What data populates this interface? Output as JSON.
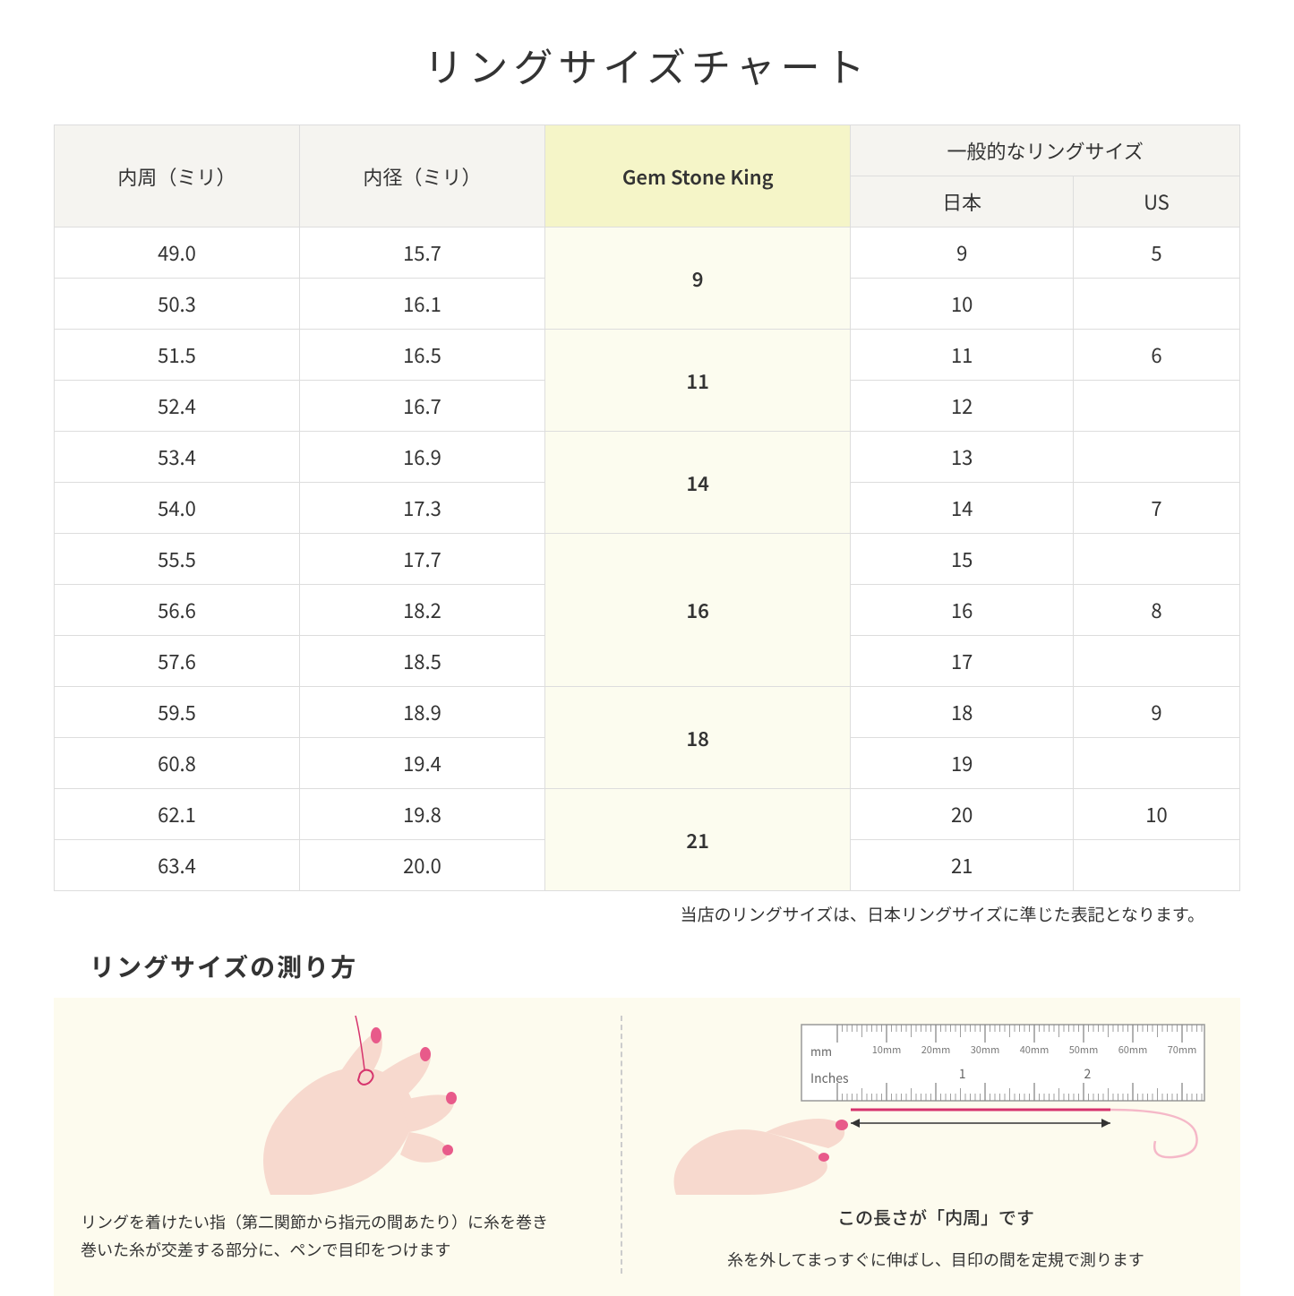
{
  "title": "リングサイズチャート",
  "headers": {
    "circumference": "内周（ミリ）",
    "diameter": "内径（ミリ）",
    "gsk": "Gem Stone King",
    "general": "一般的なリングサイズ",
    "jp": "日本",
    "us": "US"
  },
  "groups": [
    {
      "gsk": "9",
      "rows": [
        {
          "c": "49.0",
          "d": "15.7",
          "jp": "9",
          "us": "5"
        },
        {
          "c": "50.3",
          "d": "16.1",
          "jp": "10",
          "us": ""
        }
      ]
    },
    {
      "gsk": "11",
      "rows": [
        {
          "c": "51.5",
          "d": "16.5",
          "jp": "11",
          "us": "6"
        },
        {
          "c": "52.4",
          "d": "16.7",
          "jp": "12",
          "us": ""
        }
      ]
    },
    {
      "gsk": "14",
      "rows": [
        {
          "c": "53.4",
          "d": "16.9",
          "jp": "13",
          "us": ""
        },
        {
          "c": "54.0",
          "d": "17.3",
          "jp": "14",
          "us": "7"
        }
      ]
    },
    {
      "gsk": "16",
      "rows": [
        {
          "c": "55.5",
          "d": "17.7",
          "jp": "15",
          "us": ""
        },
        {
          "c": "56.6",
          "d": "18.2",
          "jp": "16",
          "us": "8"
        },
        {
          "c": "57.6",
          "d": "18.5",
          "jp": "17",
          "us": ""
        }
      ]
    },
    {
      "gsk": "18",
      "rows": [
        {
          "c": "59.5",
          "d": "18.9",
          "jp": "18",
          "us": "9"
        },
        {
          "c": "60.8",
          "d": "19.4",
          "jp": "19",
          "us": ""
        }
      ]
    },
    {
      "gsk": "21",
      "rows": [
        {
          "c": "62.1",
          "d": "19.8",
          "jp": "20",
          "us": "10"
        },
        {
          "c": "63.4",
          "d": "20.0",
          "jp": "21",
          "us": ""
        }
      ]
    }
  ],
  "note": "当店のリングサイズは、日本リングサイズに準じた表記となります。",
  "howto": {
    "title": "リングサイズの測り方",
    "left": "リングを着けたい指（第二関節から指元の間あたり）に糸を巻き\n巻いた糸が交差する部分に、ペンで目印をつけます",
    "right_label": "この長さが「内周」です",
    "right": "糸を外してまっすぐに伸ばし、目印の間を定規で測ります",
    "ruler_marks": [
      "10mm",
      "20mm",
      "30mm",
      "40mm",
      "50mm",
      "60mm",
      "70mm"
    ],
    "ruler_unit_mm": "mm",
    "ruler_unit_in": "Inches",
    "ruler_in_marks": [
      "1",
      "2"
    ]
  },
  "colors": {
    "header_bg": "#f5f4f0",
    "gsk_header_bg": "#f5f5c8",
    "gsk_cell_bg": "#fcfcef",
    "howto_bg": "#fdfbee",
    "border": "#dddddd",
    "thread": "#d6336c",
    "skin": "#f7d9ce",
    "nail": "#e85a8a"
  }
}
